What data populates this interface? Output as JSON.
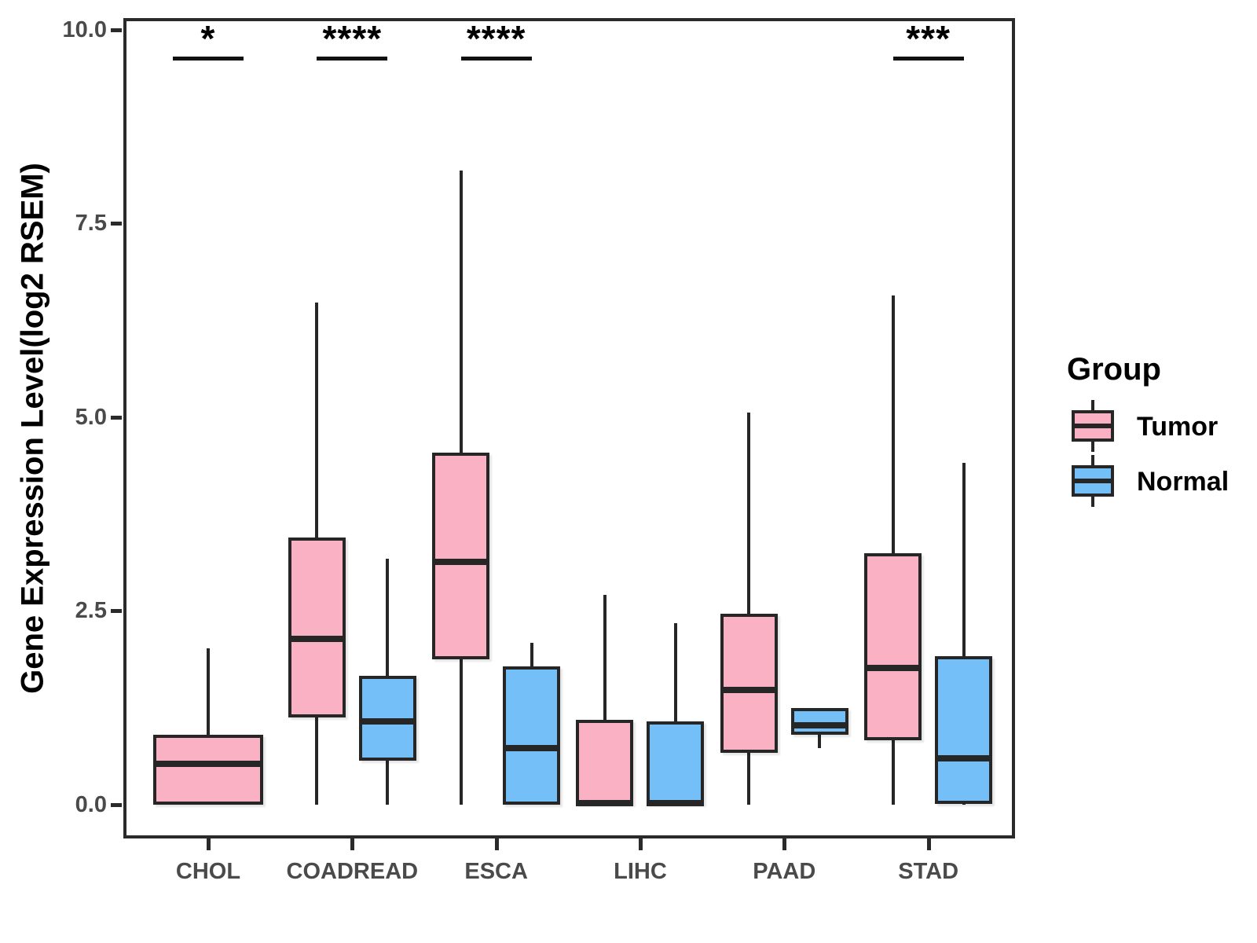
{
  "chart_data": {
    "type": "box",
    "title": "",
    "xlabel": "",
    "ylabel": "Gene Expression Level(log2 RSEM)",
    "ylim": [
      0,
      10
    ],
    "grid": false,
    "yticks": [
      {
        "value": 0.0,
        "label": "0.0"
      },
      {
        "value": 2.5,
        "label": "2.5"
      },
      {
        "value": 5.0,
        "label": "5.0"
      },
      {
        "value": 7.5,
        "label": "7.5"
      },
      {
        "value": 10.0,
        "label": "10.0"
      }
    ],
    "categories": [
      "CHOL",
      "COADREAD",
      "ESCA",
      "LIHC",
      "PAAD",
      "STAD"
    ],
    "series": [
      {
        "name": "Tumor",
        "color": "#FAB1C3",
        "values": [
          {
            "min": 0.0,
            "q1": 0.0,
            "med": 0.53,
            "q3": 0.9,
            "max": 2.02
          },
          {
            "min": 0.0,
            "q1": 1.13,
            "med": 2.14,
            "q3": 3.45,
            "max": 6.48
          },
          {
            "min": 0.0,
            "q1": 1.88,
            "med": 3.13,
            "q3": 4.54,
            "max": 8.18
          },
          {
            "min": 0.0,
            "q1": 0.0,
            "med": 0.02,
            "q3": 1.09,
            "max": 2.71
          },
          {
            "min": 0.0,
            "q1": 0.67,
            "med": 1.48,
            "q3": 2.46,
            "max": 5.06
          },
          {
            "min": 0.0,
            "q1": 0.83,
            "med": 1.76,
            "q3": 3.24,
            "max": 6.57
          }
        ]
      },
      {
        "name": "Normal",
        "color": "#74BFF8",
        "values": [
          null,
          {
            "min": 0.0,
            "q1": 0.57,
            "med": 1.07,
            "q3": 1.66,
            "max": 3.17
          },
          {
            "min": 0.0,
            "q1": 0.0,
            "med": 0.73,
            "q3": 1.78,
            "max": 2.09
          },
          {
            "min": 0.0,
            "q1": 0.0,
            "med": 0.02,
            "q3": 1.07,
            "max": 2.34
          },
          {
            "min": 0.73,
            "q1": 0.9,
            "med": 1.02,
            "q3": 1.25,
            "max": 1.25
          },
          {
            "min": 0.0,
            "q1": 0.01,
            "med": 0.6,
            "q3": 1.92,
            "max": 4.41
          }
        ]
      }
    ],
    "significance": [
      {
        "category": "CHOL",
        "label": "*"
      },
      {
        "category": "COADREAD",
        "label": "****"
      },
      {
        "category": "ESCA",
        "label": "****"
      },
      {
        "category": "STAD",
        "label": "***"
      }
    ],
    "legend": {
      "title": "Group",
      "position": "right",
      "entries": [
        {
          "label": "Tumor",
          "color": "#FAB1C3"
        },
        {
          "label": "Normal",
          "color": "#74BFF8"
        }
      ]
    }
  }
}
